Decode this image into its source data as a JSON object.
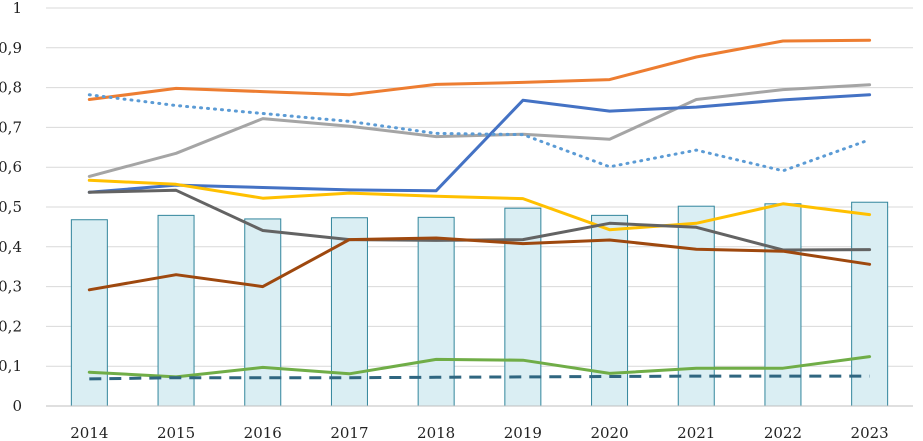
{
  "chart_data": {
    "type": "bar+line",
    "title": "",
    "xlabel": "",
    "ylabel": "",
    "ylim": [
      0,
      1
    ],
    "yticks": [
      "0",
      "0,1",
      "0,2",
      "0,3",
      "0,4",
      "0,5",
      "0,6",
      "0,7",
      "0,8",
      "0,9",
      "1"
    ],
    "grid": "horizontal",
    "legend": "none",
    "categories": [
      "2014",
      "2015",
      "2016",
      "2017",
      "2018",
      "2019",
      "2020",
      "2021",
      "2022",
      "2023"
    ],
    "bars": {
      "name": "bars",
      "color": "#daeef3",
      "edge_color": "#31859c",
      "values": [
        0.468,
        0.479,
        0.47,
        0.473,
        0.474,
        0.497,
        0.479,
        0.502,
        0.508,
        0.512
      ]
    },
    "series": [
      {
        "name": "orange",
        "color": "#ed7d31",
        "style": "solid",
        "values": [
          0.77,
          0.798,
          0.79,
          0.782,
          0.808,
          0.813,
          0.82,
          0.877,
          0.917,
          0.919
        ]
      },
      {
        "name": "gray",
        "color": "#a5a5a5",
        "style": "solid",
        "values": [
          0.577,
          0.635,
          0.722,
          0.703,
          0.677,
          0.683,
          0.67,
          0.77,
          0.795,
          0.807
        ]
      },
      {
        "name": "blue",
        "color": "#4472c4",
        "style": "solid",
        "values": [
          0.537,
          0.555,
          0.549,
          0.543,
          0.541,
          0.768,
          0.741,
          0.751,
          0.769,
          0.782
        ]
      },
      {
        "name": "light-blue dotted",
        "color": "#5b9bd5",
        "style": "dotted",
        "values": [
          0.782,
          0.755,
          0.735,
          0.715,
          0.685,
          0.682,
          0.601,
          0.643,
          0.591,
          0.669
        ]
      },
      {
        "name": "yellow",
        "color": "#ffc000",
        "style": "solid",
        "values": [
          0.567,
          0.557,
          0.522,
          0.535,
          0.527,
          0.521,
          0.443,
          0.459,
          0.508,
          0.481
        ]
      },
      {
        "name": "dark gray",
        "color": "#636363",
        "style": "solid",
        "values": [
          0.537,
          0.542,
          0.441,
          0.418,
          0.416,
          0.418,
          0.459,
          0.449,
          0.392,
          0.393
        ]
      },
      {
        "name": "brown",
        "color": "#9e480e",
        "style": "solid",
        "values": [
          0.292,
          0.33,
          0.3,
          0.418,
          0.422,
          0.408,
          0.417,
          0.394,
          0.389,
          0.356
        ]
      },
      {
        "name": "green",
        "color": "#70ad47",
        "style": "solid",
        "values": [
          0.085,
          0.073,
          0.097,
          0.081,
          0.117,
          0.115,
          0.082,
          0.095,
          0.095,
          0.124
        ]
      },
      {
        "name": "teal dashed",
        "color": "#2f6680",
        "style": "dashed",
        "values": [
          0.068,
          0.071,
          0.071,
          0.071,
          0.072,
          0.073,
          0.074,
          0.075,
          0.075,
          0.075
        ]
      }
    ]
  }
}
